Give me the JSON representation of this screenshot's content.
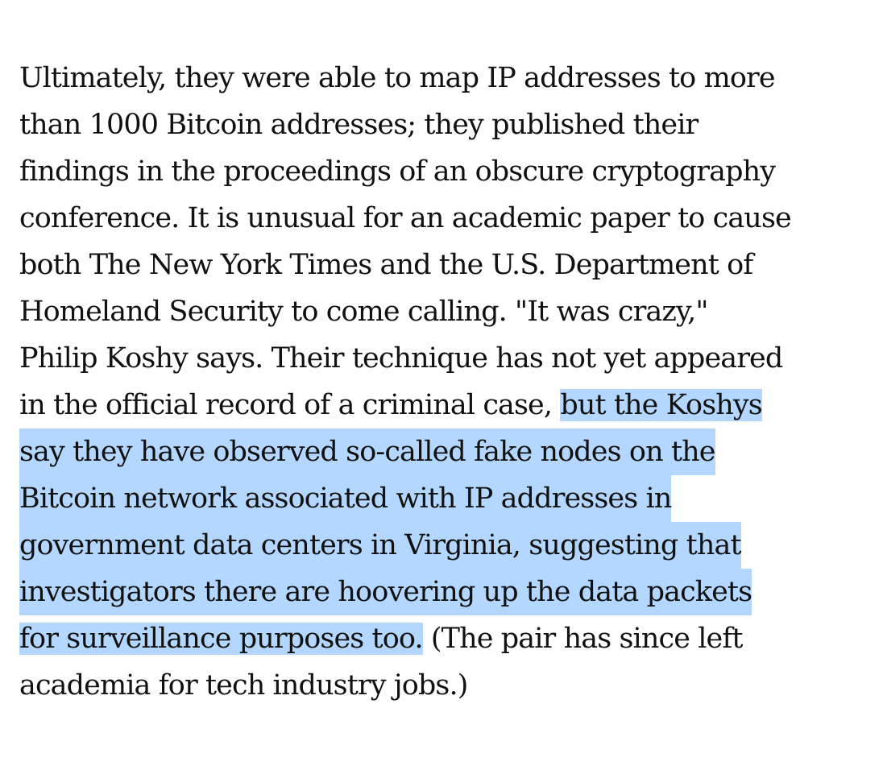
{
  "paragraph": {
    "lines": [
      "Ultimately, they were able to map IP addresses to more",
      "than 1000 Bitcoin addresses; they published their",
      "findings in the proceedings of an obscure cryptography",
      "conference. It is unusual for an academic paper to cause",
      "both The New York Times and the U.S. Department of",
      "Homeland Security to come calling. \"It was crazy,\"",
      "Philip Koshy says. Their technique has not yet appeared",
      "in the official record of a criminal case, ",
      "but the Koshys",
      "say they have observed so-called fake nodes on the",
      "Bitcoin network associated with IP addresses in",
      "government data centers in Virginia, suggesting that",
      "investigators there are hoovering up the data packets",
      "for surveillance purposes too.",
      " (The pair has since left",
      "academia for tech industry jobs.)"
    ]
  },
  "selection": {
    "color": "#b3d7ff"
  }
}
